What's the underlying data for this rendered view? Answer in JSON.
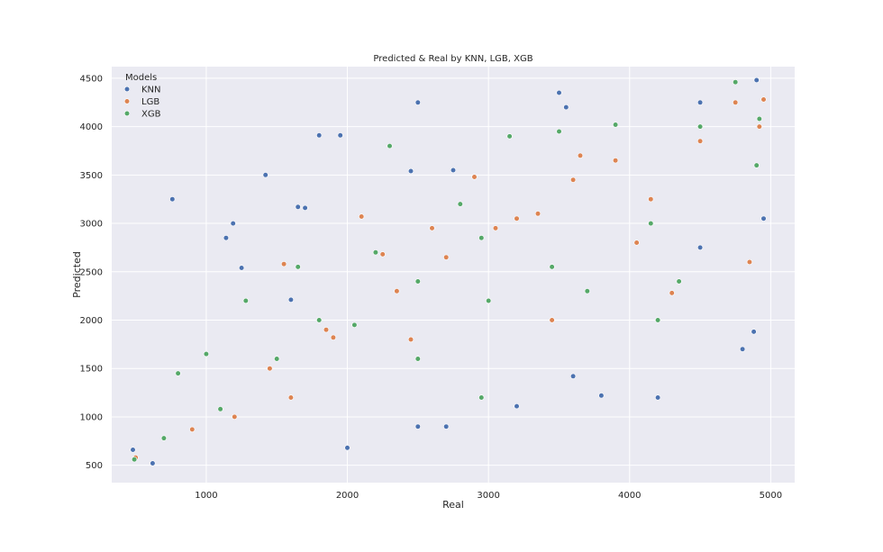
{
  "chart_data": {
    "type": "scatter",
    "title": "Predicted & Real by KNN, LGB, XGB",
    "xlabel": "Real",
    "ylabel": "Predicted",
    "xlim": [
      330,
      5170
    ],
    "ylim": [
      320,
      4620
    ],
    "xticks": [
      1000,
      2000,
      3000,
      4000,
      5000
    ],
    "yticks": [
      500,
      1000,
      1500,
      2000,
      2500,
      3000,
      3500,
      4000,
      4500
    ],
    "grid": true,
    "background": "#eaeaf2",
    "legend": {
      "title": "Models",
      "position": "top-left"
    },
    "series": [
      {
        "name": "KNN",
        "color": "#4c72b0",
        "points": [
          [
            760,
            3250
          ],
          [
            1420,
            3500
          ],
          [
            1800,
            3910
          ],
          [
            1950,
            3910
          ],
          [
            2500,
            4250
          ],
          [
            3500,
            4350
          ],
          [
            3550,
            4200
          ],
          [
            4900,
            4480
          ],
          [
            4500,
            4250
          ],
          [
            1250,
            2540
          ],
          [
            1190,
            3000
          ],
          [
            1140,
            2850
          ],
          [
            2450,
            3540
          ],
          [
            2750,
            3550
          ],
          [
            4950,
            3050
          ],
          [
            4500,
            2750
          ],
          [
            4800,
            1700
          ],
          [
            4880,
            1880
          ],
          [
            4200,
            1200
          ],
          [
            3800,
            1220
          ],
          [
            3200,
            1110
          ],
          [
            2500,
            900
          ],
          [
            2700,
            900
          ],
          [
            2000,
            680
          ],
          [
            1600,
            2210
          ],
          [
            1650,
            3170
          ],
          [
            1700,
            3160
          ],
          [
            3600,
            1420
          ],
          [
            620,
            520
          ],
          [
            480,
            660
          ]
        ]
      },
      {
        "name": "LGB",
        "color": "#dd8452",
        "points": [
          [
            500,
            580
          ],
          [
            900,
            870
          ],
          [
            1450,
            1500
          ],
          [
            1900,
            1820
          ],
          [
            2350,
            2300
          ],
          [
            2700,
            2650
          ],
          [
            3050,
            2950
          ],
          [
            3600,
            3450
          ],
          [
            4150,
            3250
          ],
          [
            4500,
            3850
          ],
          [
            4750,
            4250
          ],
          [
            4850,
            2600
          ],
          [
            4920,
            4000
          ],
          [
            4950,
            4280
          ],
          [
            4300,
            2280
          ],
          [
            3900,
            3650
          ],
          [
            3200,
            3050
          ],
          [
            2900,
            3480
          ],
          [
            3650,
            3700
          ],
          [
            2100,
            3070
          ],
          [
            1550,
            2580
          ],
          [
            1850,
            1900
          ],
          [
            2250,
            2680
          ],
          [
            2600,
            2950
          ],
          [
            3350,
            3100
          ],
          [
            4050,
            2800
          ],
          [
            3450,
            2000
          ],
          [
            2450,
            1800
          ],
          [
            1600,
            1200
          ],
          [
            1200,
            1000
          ]
        ]
      },
      {
        "name": "XGB",
        "color": "#55a868",
        "points": [
          [
            490,
            560
          ],
          [
            700,
            780
          ],
          [
            1100,
            1080
          ],
          [
            1500,
            1600
          ],
          [
            2050,
            1950
          ],
          [
            2500,
            2400
          ],
          [
            2950,
            2850
          ],
          [
            3500,
            3950
          ],
          [
            3900,
            4020
          ],
          [
            4750,
            4460
          ],
          [
            4920,
            4080
          ],
          [
            4900,
            3600
          ],
          [
            4500,
            4000
          ],
          [
            4150,
            3000
          ],
          [
            3700,
            2300
          ],
          [
            3150,
            3900
          ],
          [
            2800,
            3200
          ],
          [
            2300,
            3800
          ],
          [
            1650,
            2550
          ],
          [
            1280,
            2200
          ],
          [
            1000,
            1650
          ],
          [
            800,
            1450
          ],
          [
            3450,
            2550
          ],
          [
            2950,
            1200
          ],
          [
            2500,
            1600
          ],
          [
            4200,
            2000
          ],
          [
            4350,
            2400
          ],
          [
            3000,
            2200
          ],
          [
            1800,
            2000
          ],
          [
            2200,
            2700
          ]
        ]
      }
    ]
  }
}
